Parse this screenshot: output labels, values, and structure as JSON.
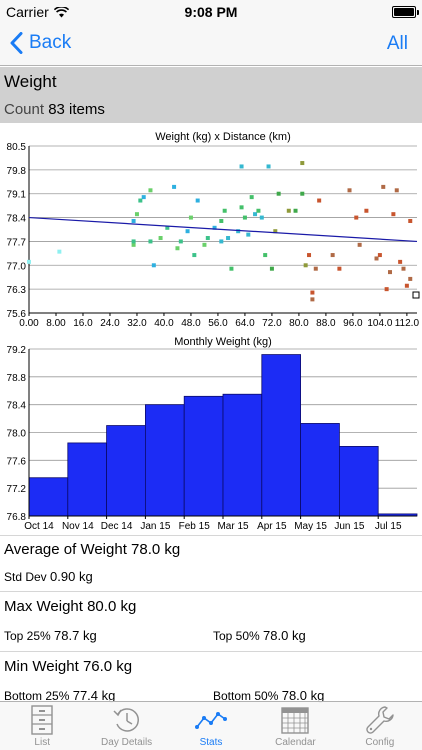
{
  "status_bar": {
    "carrier": "Carrier",
    "time": "9:08 PM"
  },
  "nav": {
    "back_label": "Back",
    "right_label": "All"
  },
  "section": {
    "title": "Weight",
    "count_prefix": "Count",
    "count_value": "83 items"
  },
  "scatter_chart": {
    "title": "Weight (kg) x Distance (km)",
    "y_ticks": [
      "80.5",
      "79.8",
      "79.1",
      "78.4",
      "77.7",
      "77.0",
      "76.3",
      "75.6"
    ],
    "x_ticks": [
      "0.00",
      "8.00",
      "16.0",
      "24.0",
      "32.0",
      "40.0",
      "48.0",
      "56.0",
      "64.0",
      "72.0",
      "80.0",
      "88.0",
      "96.0",
      "104.0",
      "112.0"
    ]
  },
  "bar_chart": {
    "title": "Monthly Weight (kg)",
    "y_ticks": [
      "79.2",
      "78.8",
      "78.4",
      "78.0",
      "77.6",
      "77.2",
      "76.8"
    ],
    "x_ticks": [
      "Oct 14",
      "Nov 14",
      "Dec 14",
      "Jan 15",
      "Feb 15",
      "Mar 15",
      "Apr 15",
      "May 15",
      "Jun 15",
      "Jul 15"
    ]
  },
  "chart_data": [
    {
      "type": "scatter",
      "title": "Weight (kg) x Distance (km)",
      "xlim": [
        0,
        115
      ],
      "ylim": [
        75.6,
        80.5
      ],
      "grid": true,
      "trendline": [
        [
          0,
          78.4
        ],
        [
          115,
          77.7
        ]
      ],
      "points": [
        [
          0,
          77.1
        ],
        [
          9,
          77.4
        ],
        [
          31,
          77.6
        ],
        [
          31,
          77.7
        ],
        [
          31,
          78.3
        ],
        [
          32,
          78.5
        ],
        [
          33,
          78.9
        ],
        [
          34,
          79.0
        ],
        [
          36,
          79.2
        ],
        [
          36,
          77.7
        ],
        [
          37,
          77.0
        ],
        [
          39,
          77.8
        ],
        [
          41,
          78.1
        ],
        [
          43,
          79.3
        ],
        [
          44,
          77.5
        ],
        [
          45,
          77.7
        ],
        [
          47,
          78.0
        ],
        [
          48,
          78.4
        ],
        [
          49,
          77.3
        ],
        [
          50,
          78.9
        ],
        [
          52,
          77.6
        ],
        [
          53,
          77.8
        ],
        [
          55,
          78.1
        ],
        [
          57,
          78.3
        ],
        [
          57,
          77.7
        ],
        [
          58,
          78.6
        ],
        [
          59,
          77.8
        ],
        [
          60,
          76.9
        ],
        [
          62,
          78.0
        ],
        [
          63,
          78.7
        ],
        [
          63,
          79.9
        ],
        [
          64,
          78.4
        ],
        [
          65,
          77.9
        ],
        [
          66,
          79.0
        ],
        [
          67,
          78.5
        ],
        [
          68,
          78.6
        ],
        [
          69,
          78.4
        ],
        [
          70,
          77.3
        ],
        [
          71,
          79.9
        ],
        [
          72,
          76.9
        ],
        [
          73,
          78.0
        ],
        [
          74,
          79.1
        ],
        [
          77,
          78.6
        ],
        [
          79,
          78.6
        ],
        [
          81,
          80.0
        ],
        [
          81,
          79.1
        ],
        [
          82,
          77.0
        ],
        [
          83,
          77.3
        ],
        [
          84,
          76.0
        ],
        [
          84,
          76.2
        ],
        [
          85,
          76.9
        ],
        [
          86,
          78.9
        ],
        [
          90,
          77.3
        ],
        [
          92,
          76.9
        ],
        [
          95,
          79.2
        ],
        [
          97,
          78.4
        ],
        [
          98,
          77.6
        ],
        [
          100,
          78.6
        ],
        [
          103,
          77.2
        ],
        [
          104,
          77.3
        ],
        [
          105,
          79.3
        ],
        [
          106,
          76.3
        ],
        [
          107,
          76.8
        ],
        [
          108,
          78.5
        ],
        [
          109,
          79.2
        ],
        [
          110,
          77.1
        ],
        [
          111,
          76.9
        ],
        [
          112,
          76.4
        ],
        [
          113,
          76.6
        ],
        [
          113,
          78.3
        ]
      ]
    },
    {
      "type": "bar",
      "title": "Monthly Weight (kg)",
      "categories": [
        "Oct 14",
        "Nov 14",
        "Dec 14",
        "Jan 15",
        "Feb 15",
        "Mar 15",
        "Apr 15",
        "May 15",
        "Jun 15",
        "Jul 15"
      ],
      "values": [
        77.35,
        77.85,
        78.1,
        78.4,
        78.52,
        78.55,
        79.12,
        78.13,
        77.8,
        76.83
      ],
      "ylim": [
        76.8,
        79.2
      ],
      "grid": true
    }
  ],
  "stats": {
    "avg_label": "Average of Weight",
    "avg_value": "78.0 kg",
    "std_label": "Std Dev",
    "std_value": "0.90 kg",
    "max_label": "Max Weight",
    "max_value": "80.0 kg",
    "top25_label": "Top 25%",
    "top25_value": "78.7 kg",
    "top50_label": "Top 50%",
    "top50_value": "78.0 kg",
    "min_label": "Min Weight",
    "min_value": "76.0 kg",
    "bottom25_label": "Bottom 25%",
    "bottom25_value": "77.4 kg",
    "bottom50_label": "Bottom 50%",
    "bottom50_value": "78.0 kg"
  },
  "tabs": [
    {
      "label": "List",
      "icon": "cabinet-icon"
    },
    {
      "label": "Day Details",
      "icon": "clock-icon"
    },
    {
      "label": "Stats",
      "icon": "line-chart-icon",
      "active": true
    },
    {
      "label": "Calendar",
      "icon": "calendar-icon"
    },
    {
      "label": "Config",
      "icon": "wrench-icon"
    }
  ],
  "colors": {
    "accent": "#1a7cf5",
    "bar_fill": "#1c2cf5",
    "trend_line": "#1a1aa8"
  }
}
